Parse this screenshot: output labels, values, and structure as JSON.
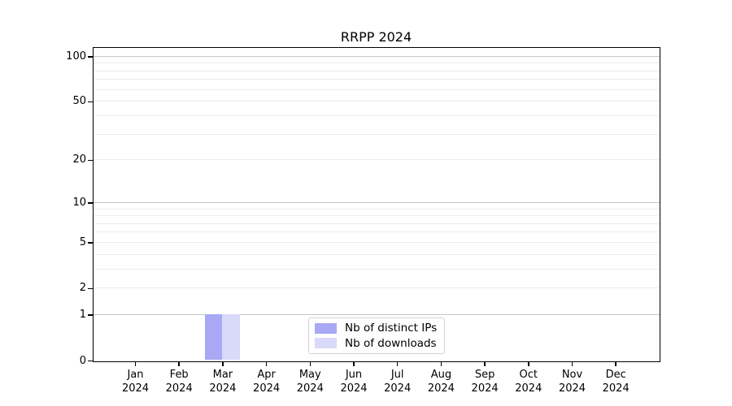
{
  "chart_data": {
    "type": "bar",
    "title": "RRPP 2024",
    "categories": [
      "Jan 2024",
      "Feb 2024",
      "Mar 2024",
      "Apr 2024",
      "May 2024",
      "Jun 2024",
      "Jul 2024",
      "Aug 2024",
      "Sep 2024",
      "Oct 2024",
      "Nov 2024",
      "Dec 2024"
    ],
    "series": [
      {
        "name": "Nb of distinct IPs",
        "color": "#a8a8f5",
        "values": [
          0,
          0,
          1,
          0,
          0,
          0,
          0,
          0,
          0,
          0,
          0,
          0
        ]
      },
      {
        "name": "Nb of downloads",
        "color": "#d9d9f9",
        "values": [
          0,
          0,
          1,
          0,
          0,
          0,
          0,
          0,
          0,
          0,
          0,
          0
        ]
      }
    ],
    "xlabel": "",
    "ylabel": "",
    "yscale": "log1p",
    "ylim": [
      0,
      100
    ],
    "y_tick_values": [
      0,
      1,
      2,
      5,
      10,
      20,
      50,
      100
    ],
    "y_tick_labels": [
      "0",
      "1",
      "2",
      "5",
      "10",
      "20",
      "50",
      "100"
    ],
    "y_major_grid_values": [
      1,
      10,
      100
    ],
    "y_minor_grid_values": [
      2,
      3,
      4,
      5,
      6,
      7,
      8,
      9,
      20,
      30,
      40,
      50,
      60,
      70,
      80,
      90
    ],
    "grid": "horizontal-only",
    "legend_position": "lower center",
    "colors": {
      "axis": "#000000",
      "major_grid": "#c6c6c6",
      "minor_grid": "#ececec",
      "background": "#ffffff",
      "title_text": "#000000"
    }
  }
}
